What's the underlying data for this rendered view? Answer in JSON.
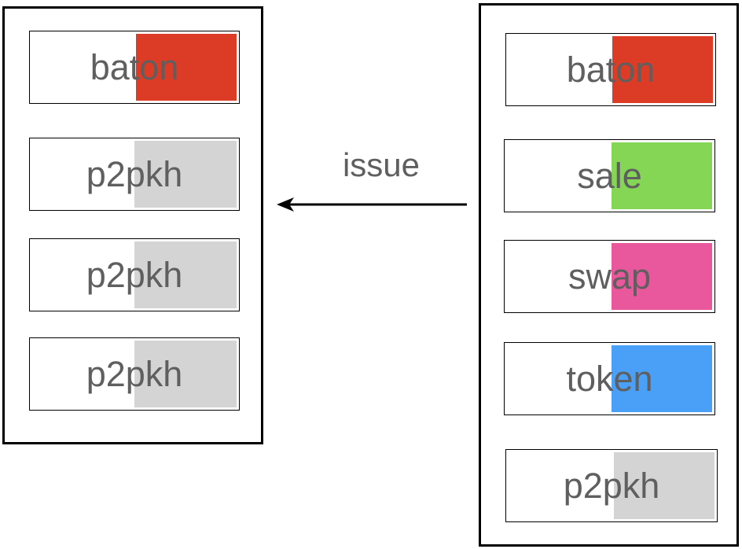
{
  "colors": {
    "baton": "#dc3b26",
    "sale": "#84d654",
    "swap": "#e9579c",
    "token": "#4a9ff6",
    "p2pkh": "#d4d4d4"
  },
  "arrow": {
    "label": "issue",
    "direction": "right-to-left"
  },
  "left_outputs": [
    {
      "label": "baton",
      "color_key": "baton"
    },
    {
      "label": "p2pkh",
      "color_key": "p2pkh"
    },
    {
      "label": "p2pkh",
      "color_key": "p2pkh"
    },
    {
      "label": "p2pkh",
      "color_key": "p2pkh"
    }
  ],
  "right_outputs": [
    {
      "label": "baton",
      "color_key": "baton"
    },
    {
      "label": "sale",
      "color_key": "sale"
    },
    {
      "label": "swap",
      "color_key": "swap"
    },
    {
      "label": "token",
      "color_key": "token"
    },
    {
      "label": "p2pkh",
      "color_key": "p2pkh"
    }
  ]
}
